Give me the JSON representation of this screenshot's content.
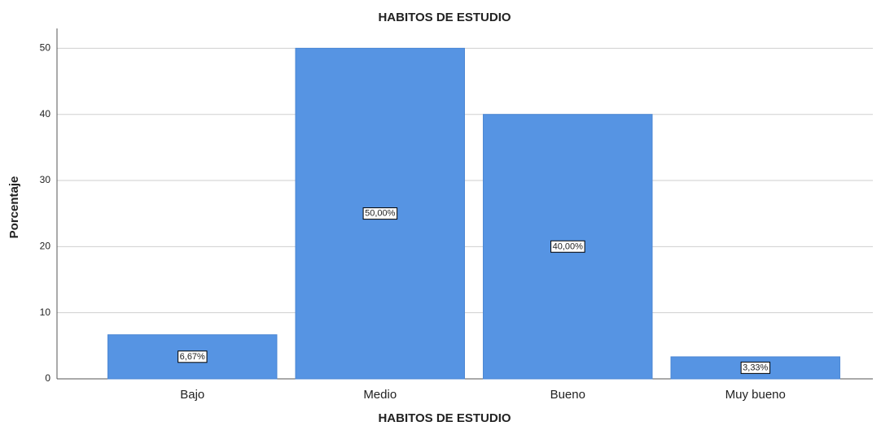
{
  "chart_data": {
    "type": "bar",
    "title": "HABITOS DE ESTUDIO",
    "x_label": "HABITOS DE ESTUDIO",
    "y_label": "Porcentaje",
    "categories": [
      "Bajo",
      "Medio",
      "Bueno",
      "Muy bueno"
    ],
    "values": [
      6.67,
      50,
      40,
      3.33
    ],
    "value_labels": [
      "6,67%",
      "50,00%",
      "40,00%",
      "3,33%"
    ],
    "color": "#5694e3",
    "ylim": [
      0,
      53
    ],
    "yticks": [
      0,
      10,
      20,
      30,
      40,
      50
    ],
    "grid": true
  }
}
